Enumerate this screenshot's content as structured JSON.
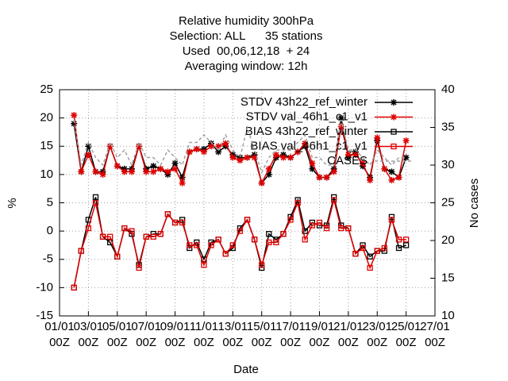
{
  "chart_data": {
    "type": "line",
    "title": [
      "Relative humidity 300hPa",
      "Selection: ALL      35 stations",
      "Used  00,06,12,18  + 24",
      "Averaging window: 12h"
    ],
    "x_label": "Date",
    "y_label": "%",
    "y2_label": "No cases",
    "x": [
      1,
      1.5,
      2,
      2.5,
      3,
      3.5,
      4,
      4.5,
      5,
      5.5,
      6,
      6.5,
      7,
      7.5,
      8,
      8.5,
      9,
      9.5,
      10,
      10.5,
      11,
      11.5,
      12,
      12.5,
      13,
      13.5,
      14,
      14.5,
      15,
      15.5,
      16,
      16.5,
      17,
      17.5,
      18,
      18.5,
      19,
      19.5,
      20,
      20.5,
      21,
      21.5,
      22,
      22.5,
      23,
      23.5,
      24
    ],
    "xlim": [
      0,
      26
    ],
    "xticks": [
      {
        "value": 0,
        "label": "01/01 00Z"
      },
      {
        "value": 2,
        "label": "03/01 00Z"
      },
      {
        "value": 4,
        "label": "05/01 00Z"
      },
      {
        "value": 6,
        "label": "07/01 00Z"
      },
      {
        "value": 8,
        "label": "09/01 00Z"
      },
      {
        "value": 10,
        "label": "11/01 00Z"
      },
      {
        "value": 12,
        "label": "13/01 00Z"
      },
      {
        "value": 14,
        "label": "15/01 00Z"
      },
      {
        "value": 16,
        "label": "17/01 00Z"
      },
      {
        "value": 18,
        "label": "19/01 00Z"
      },
      {
        "value": 20,
        "label": "21/01 00Z"
      },
      {
        "value": 22,
        "label": "23/01 00Z"
      },
      {
        "value": 24,
        "label": "25/01 00Z"
      },
      {
        "value": 26,
        "label": "27/01 00Z"
      }
    ],
    "ylim": [
      -15,
      25
    ],
    "yticks": [
      -15,
      -10,
      -5,
      0,
      5,
      10,
      15,
      20,
      25
    ],
    "y2lim": [
      10,
      40
    ],
    "y2ticks": [
      10,
      15,
      20,
      25,
      30,
      35,
      40
    ],
    "grid": true,
    "legend": "top-right",
    "series": [
      {
        "name": "STDV 43h22_ref_winter",
        "color": "#000000",
        "marker": "star",
        "values": [
          19,
          10.5,
          15,
          10.5,
          10.5,
          15,
          11.5,
          11,
          11,
          15,
          11,
          11.5,
          11,
          10,
          12,
          9.5,
          14,
          14.5,
          14.5,
          15.5,
          14,
          15,
          13.5,
          13,
          13,
          13.5,
          8.5,
          10,
          13,
          13.5,
          13,
          14,
          15,
          11,
          9.5,
          9.5,
          11,
          20,
          13,
          14,
          11.5,
          9.5,
          16,
          11,
          10.5,
          9.5,
          13
        ]
      },
      {
        "name": "STDV val_46h1_c1_v1",
        "color": "#e00000",
        "marker": "star",
        "values": [
          20.5,
          10.5,
          13.5,
          10.5,
          10,
          15,
          11.5,
          10.5,
          10.5,
          15,
          10.5,
          10.5,
          11,
          10.5,
          11,
          8.5,
          14,
          14.5,
          14,
          15,
          15,
          15.5,
          13,
          12.5,
          13,
          13,
          8.5,
          11,
          13.5,
          13,
          13,
          14,
          15.5,
          12,
          9.5,
          9.5,
          10.5,
          18.5,
          13.5,
          13.5,
          12,
          9,
          16.5,
          11,
          9,
          9.5,
          16
        ]
      },
      {
        "name": "BIAS 43h22_ref_winter",
        "color": "#000000",
        "marker": "square",
        "values": [
          -10,
          -3.5,
          2,
          6,
          -1,
          -2,
          -4.5,
          0.5,
          -0.5,
          -6,
          -1,
          -0.5,
          -0.5,
          3,
          1.5,
          2,
          -3,
          -2,
          -5,
          -2,
          -1.5,
          -4,
          -3,
          0.5,
          2,
          -1.5,
          -6.5,
          -0.5,
          -1.5,
          -0.5,
          2.5,
          5.5,
          0,
          1.5,
          1,
          1,
          6,
          1,
          0.5,
          -4,
          -2.5,
          -4.5,
          -3.5,
          -3.5,
          2.5,
          -3,
          -2.5
        ]
      },
      {
        "name": "BIAS val_46h1_c1_v1",
        "color": "#e00000",
        "marker": "square",
        "values": [
          -10,
          -3.5,
          0.5,
          5,
          -1,
          -1,
          -4.5,
          0.5,
          0,
          -6.5,
          -1,
          -1,
          -0.5,
          3,
          1.5,
          1.5,
          -2.5,
          -2.5,
          -6,
          -2.5,
          -1.5,
          -4,
          -2.5,
          0,
          2,
          -1.5,
          -6,
          -2,
          -2,
          -0.5,
          2,
          5,
          -1.5,
          1,
          1.5,
          0.5,
          5.5,
          0.5,
          0.5,
          -4,
          -3,
          -6.5,
          -3.5,
          -3,
          2,
          -1.5,
          -1.5
        ]
      },
      {
        "name": "CASES",
        "color": "#a0a0a0",
        "marker": "none",
        "dashed": true,
        "axis": "y2",
        "values": [
          36,
          30,
          33,
          31,
          30,
          33,
          31,
          32,
          30,
          33,
          31,
          31,
          30,
          32,
          31,
          30,
          33,
          33,
          34,
          33,
          32,
          34,
          32,
          31,
          35,
          32,
          29,
          31,
          32,
          32,
          32,
          33,
          34,
          31,
          31,
          30,
          30,
          36,
          32,
          32,
          31,
          30,
          32,
          31,
          30,
          31,
          31
        ]
      }
    ]
  }
}
